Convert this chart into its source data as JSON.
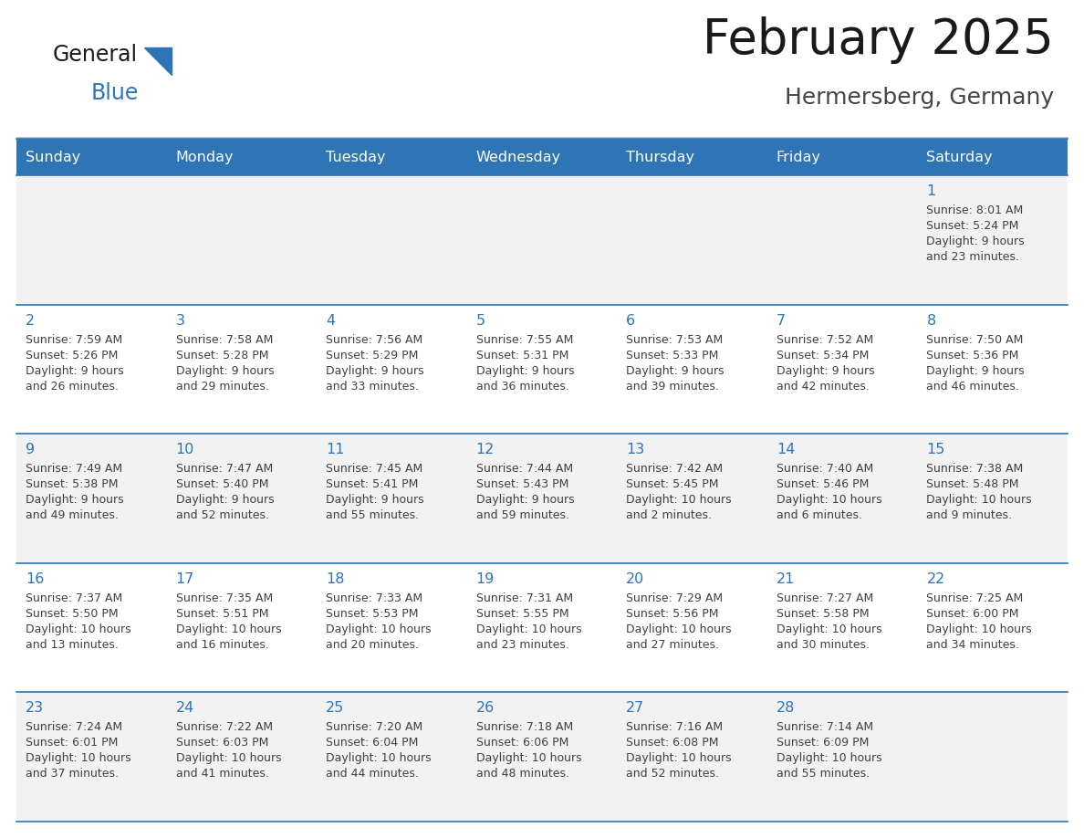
{
  "title": "February 2025",
  "subtitle": "Hermersberg, Germany",
  "header_bg": "#2E75B6",
  "header_text_color": "#FFFFFF",
  "cell_bg_row0": "#F2F2F2",
  "cell_bg_row1": "#FFFFFF",
  "cell_bg_row2": "#F2F2F2",
  "cell_bg_row3": "#FFFFFF",
  "cell_bg_row4": "#F2F2F2",
  "day_number_color": "#2E75B6",
  "info_text_color": "#404040",
  "border_color": "#2E75B6",
  "days_of_week": [
    "Sunday",
    "Monday",
    "Tuesday",
    "Wednesday",
    "Thursday",
    "Friday",
    "Saturday"
  ],
  "calendar": [
    [
      null,
      null,
      null,
      null,
      null,
      null,
      {
        "day": "1",
        "sunrise": "8:01 AM",
        "sunset": "5:24 PM",
        "daylight_l1": "Daylight: 9 hours",
        "daylight_l2": "and 23 minutes."
      }
    ],
    [
      {
        "day": "2",
        "sunrise": "7:59 AM",
        "sunset": "5:26 PM",
        "daylight_l1": "Daylight: 9 hours",
        "daylight_l2": "and 26 minutes."
      },
      {
        "day": "3",
        "sunrise": "7:58 AM",
        "sunset": "5:28 PM",
        "daylight_l1": "Daylight: 9 hours",
        "daylight_l2": "and 29 minutes."
      },
      {
        "day": "4",
        "sunrise": "7:56 AM",
        "sunset": "5:29 PM",
        "daylight_l1": "Daylight: 9 hours",
        "daylight_l2": "and 33 minutes."
      },
      {
        "day": "5",
        "sunrise": "7:55 AM",
        "sunset": "5:31 PM",
        "daylight_l1": "Daylight: 9 hours",
        "daylight_l2": "and 36 minutes."
      },
      {
        "day": "6",
        "sunrise": "7:53 AM",
        "sunset": "5:33 PM",
        "daylight_l1": "Daylight: 9 hours",
        "daylight_l2": "and 39 minutes."
      },
      {
        "day": "7",
        "sunrise": "7:52 AM",
        "sunset": "5:34 PM",
        "daylight_l1": "Daylight: 9 hours",
        "daylight_l2": "and 42 minutes."
      },
      {
        "day": "8",
        "sunrise": "7:50 AM",
        "sunset": "5:36 PM",
        "daylight_l1": "Daylight: 9 hours",
        "daylight_l2": "and 46 minutes."
      }
    ],
    [
      {
        "day": "9",
        "sunrise": "7:49 AM",
        "sunset": "5:38 PM",
        "daylight_l1": "Daylight: 9 hours",
        "daylight_l2": "and 49 minutes."
      },
      {
        "day": "10",
        "sunrise": "7:47 AM",
        "sunset": "5:40 PM",
        "daylight_l1": "Daylight: 9 hours",
        "daylight_l2": "and 52 minutes."
      },
      {
        "day": "11",
        "sunrise": "7:45 AM",
        "sunset": "5:41 PM",
        "daylight_l1": "Daylight: 9 hours",
        "daylight_l2": "and 55 minutes."
      },
      {
        "day": "12",
        "sunrise": "7:44 AM",
        "sunset": "5:43 PM",
        "daylight_l1": "Daylight: 9 hours",
        "daylight_l2": "and 59 minutes."
      },
      {
        "day": "13",
        "sunrise": "7:42 AM",
        "sunset": "5:45 PM",
        "daylight_l1": "Daylight: 10 hours",
        "daylight_l2": "and 2 minutes."
      },
      {
        "day": "14",
        "sunrise": "7:40 AM",
        "sunset": "5:46 PM",
        "daylight_l1": "Daylight: 10 hours",
        "daylight_l2": "and 6 minutes."
      },
      {
        "day": "15",
        "sunrise": "7:38 AM",
        "sunset": "5:48 PM",
        "daylight_l1": "Daylight: 10 hours",
        "daylight_l2": "and 9 minutes."
      }
    ],
    [
      {
        "day": "16",
        "sunrise": "7:37 AM",
        "sunset": "5:50 PM",
        "daylight_l1": "Daylight: 10 hours",
        "daylight_l2": "and 13 minutes."
      },
      {
        "day": "17",
        "sunrise": "7:35 AM",
        "sunset": "5:51 PM",
        "daylight_l1": "Daylight: 10 hours",
        "daylight_l2": "and 16 minutes."
      },
      {
        "day": "18",
        "sunrise": "7:33 AM",
        "sunset": "5:53 PM",
        "daylight_l1": "Daylight: 10 hours",
        "daylight_l2": "and 20 minutes."
      },
      {
        "day": "19",
        "sunrise": "7:31 AM",
        "sunset": "5:55 PM",
        "daylight_l1": "Daylight: 10 hours",
        "daylight_l2": "and 23 minutes."
      },
      {
        "day": "20",
        "sunrise": "7:29 AM",
        "sunset": "5:56 PM",
        "daylight_l1": "Daylight: 10 hours",
        "daylight_l2": "and 27 minutes."
      },
      {
        "day": "21",
        "sunrise": "7:27 AM",
        "sunset": "5:58 PM",
        "daylight_l1": "Daylight: 10 hours",
        "daylight_l2": "and 30 minutes."
      },
      {
        "day": "22",
        "sunrise": "7:25 AM",
        "sunset": "6:00 PM",
        "daylight_l1": "Daylight: 10 hours",
        "daylight_l2": "and 34 minutes."
      }
    ],
    [
      {
        "day": "23",
        "sunrise": "7:24 AM",
        "sunset": "6:01 PM",
        "daylight_l1": "Daylight: 10 hours",
        "daylight_l2": "and 37 minutes."
      },
      {
        "day": "24",
        "sunrise": "7:22 AM",
        "sunset": "6:03 PM",
        "daylight_l1": "Daylight: 10 hours",
        "daylight_l2": "and 41 minutes."
      },
      {
        "day": "25",
        "sunrise": "7:20 AM",
        "sunset": "6:04 PM",
        "daylight_l1": "Daylight: 10 hours",
        "daylight_l2": "and 44 minutes."
      },
      {
        "day": "26",
        "sunrise": "7:18 AM",
        "sunset": "6:06 PM",
        "daylight_l1": "Daylight: 10 hours",
        "daylight_l2": "and 48 minutes."
      },
      {
        "day": "27",
        "sunrise": "7:16 AM",
        "sunset": "6:08 PM",
        "daylight_l1": "Daylight: 10 hours",
        "daylight_l2": "and 52 minutes."
      },
      {
        "day": "28",
        "sunrise": "7:14 AM",
        "sunset": "6:09 PM",
        "daylight_l1": "Daylight: 10 hours",
        "daylight_l2": "and 55 minutes."
      },
      null
    ]
  ]
}
